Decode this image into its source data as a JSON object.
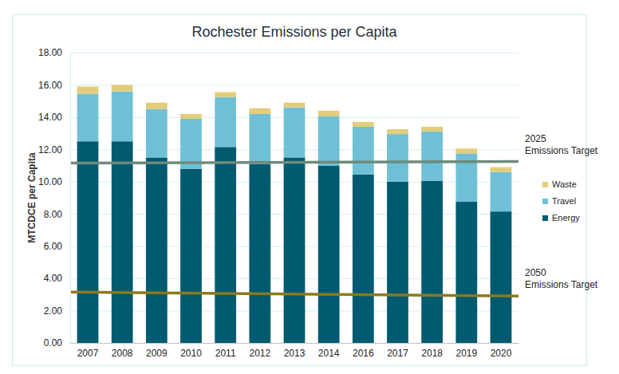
{
  "chart_data": {
    "type": "bar",
    "stacked": true,
    "title": "Rochester Emissions per Capita",
    "y_label": "MTCDCE per Capita",
    "categories": [
      "2007",
      "2008",
      "2009",
      "2010",
      "2011",
      "2012",
      "2013",
      "2014",
      "2016",
      "2017",
      "2018",
      "2019",
      "2020"
    ],
    "series": [
      {
        "name": "Energy",
        "color": "#005a70",
        "values": [
          12.5,
          12.5,
          11.5,
          10.8,
          12.15,
          11.1,
          11.5,
          11.0,
          10.45,
          10.0,
          10.05,
          8.75,
          8.15
        ]
      },
      {
        "name": "Travel",
        "color": "#6fc0d6",
        "values": [
          2.95,
          3.1,
          3.0,
          3.1,
          3.1,
          3.1,
          3.1,
          3.05,
          2.95,
          2.95,
          3.05,
          3.0,
          2.45
        ]
      },
      {
        "name": "Waste",
        "color": "#e3cc7a",
        "values": [
          0.45,
          0.4,
          0.4,
          0.3,
          0.3,
          0.35,
          0.3,
          0.35,
          0.3,
          0.3,
          0.3,
          0.3,
          0.3
        ]
      }
    ],
    "annotations": [
      {
        "text": [
          "2025",
          "Emissions Target"
        ],
        "y": [
          11.15,
          11.25
        ],
        "color": "#6f8a7a"
      },
      {
        "text": [
          "2050",
          "Emissions Target"
        ],
        "y": [
          3.15,
          2.9
        ],
        "color": "#8a7a1e"
      }
    ],
    "ylim": [
      0,
      18
    ],
    "yticks": [
      {
        "value": 0,
        "label": "0.00"
      },
      {
        "value": 2,
        "label": "2.00"
      },
      {
        "value": 4,
        "label": "4.00"
      },
      {
        "value": 6,
        "label": "6.00"
      },
      {
        "value": 8,
        "label": "8.00"
      },
      {
        "value": 10,
        "label": "10.00"
      },
      {
        "value": 12,
        "label": "12.00"
      },
      {
        "value": 14,
        "label": "14.00"
      },
      {
        "value": 16,
        "label": "16.00"
      },
      {
        "value": 18,
        "label": "18.00"
      }
    ],
    "grid": true,
    "legend": "right"
  }
}
